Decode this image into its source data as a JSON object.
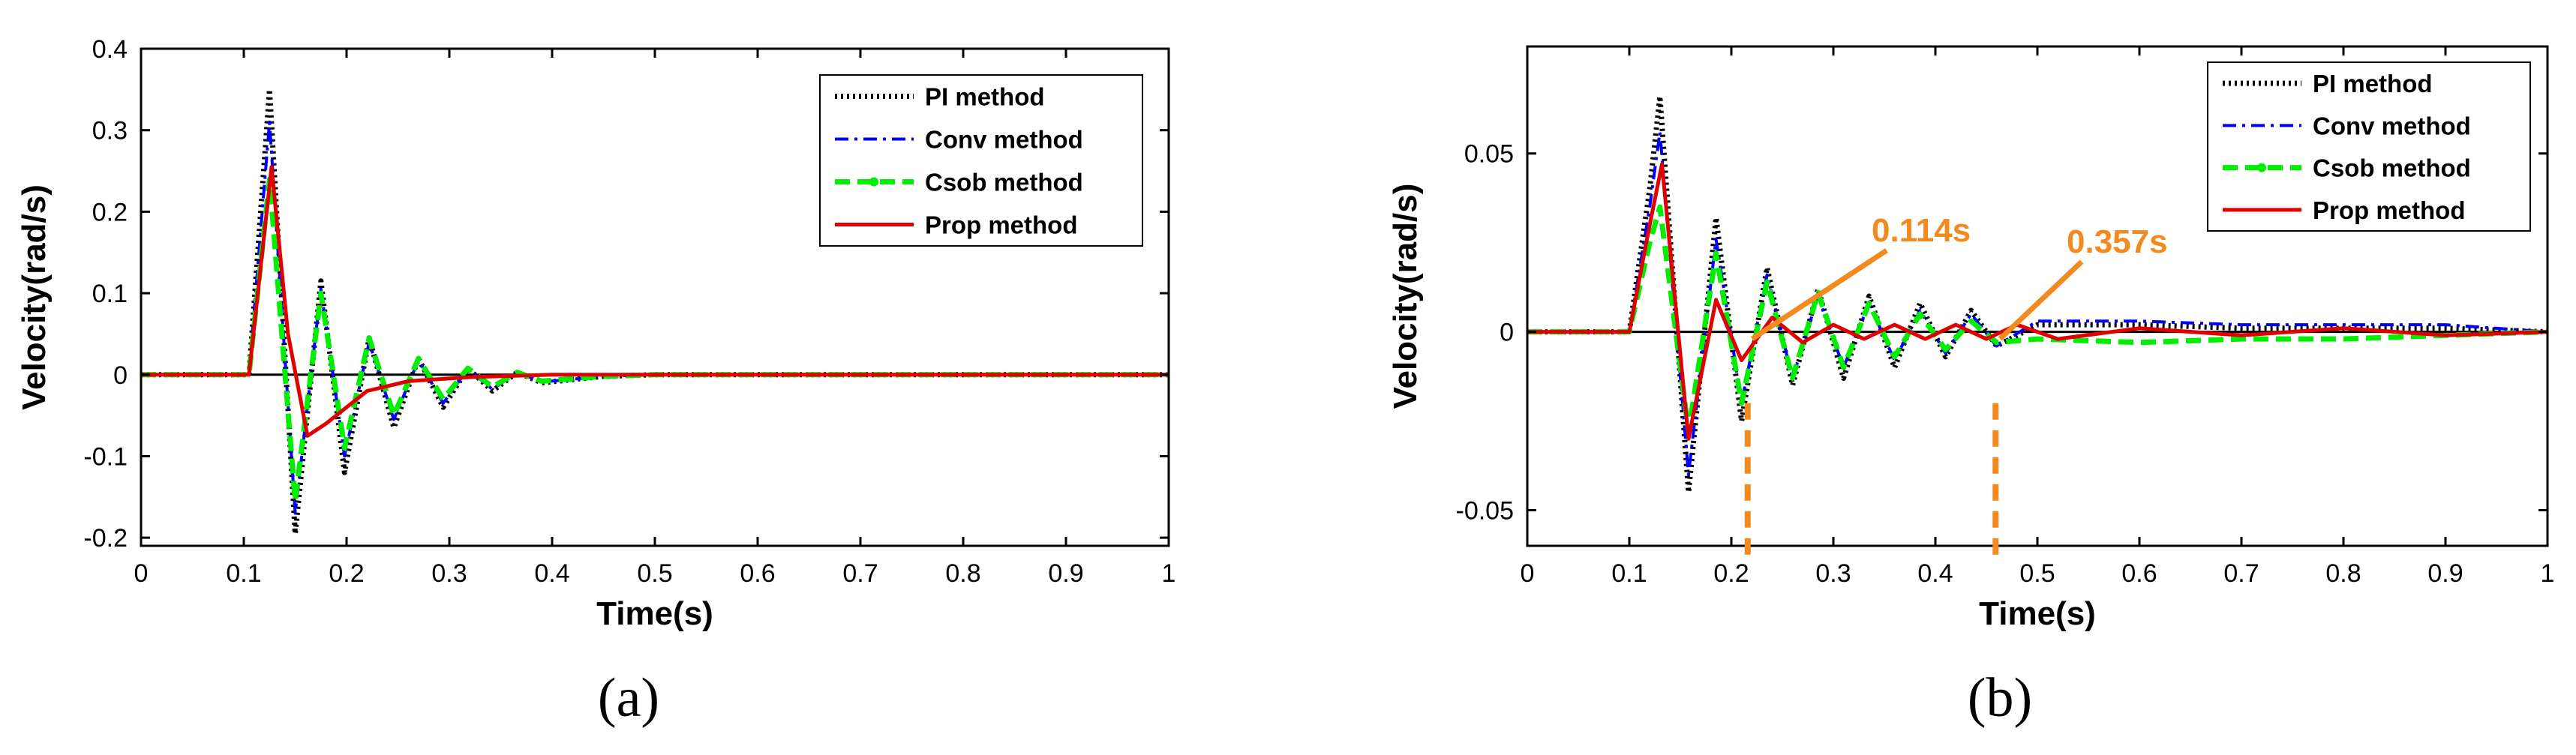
{
  "chart_data": [
    {
      "type": "line",
      "panel_label": "(a)",
      "title": "",
      "xlabel": "Time(s)",
      "ylabel": "Velocity(rad/s)",
      "xlim": [
        0,
        1
      ],
      "ylim": [
        -0.21,
        0.4
      ],
      "xticks": [
        0,
        0.1,
        0.2,
        0.3,
        0.4,
        0.5,
        0.6,
        0.7,
        0.8,
        0.9,
        1
      ],
      "xtick_labels": [
        "0",
        "0.1",
        "0.2",
        "0.3",
        "0.4",
        "0.5",
        "0.6",
        "0.7",
        "0.8",
        "0.9",
        "1"
      ],
      "yticks": [
        -0.2,
        -0.1,
        0,
        0.1,
        0.2,
        0.3,
        0.4
      ],
      "ytick_labels": [
        "-0.2",
        "-0.1",
        "0",
        "0.1",
        "0.2",
        "0.3",
        "0.4"
      ],
      "grid": false,
      "legend_position": "top-right",
      "reference_line": 0,
      "series": [
        {
          "name": "PI method",
          "color": "#000000",
          "style": "dotted",
          "x": [
            0,
            0.105,
            0.125,
            0.15,
            0.175,
            0.198,
            0.222,
            0.246,
            0.27,
            0.294,
            0.318,
            0.342,
            0.366,
            0.39,
            0.45,
            0.5,
            1
          ],
          "y": [
            0,
            0,
            0.35,
            -0.195,
            0.115,
            -0.12,
            0.045,
            -0.065,
            0.02,
            -0.04,
            0.008,
            -0.02,
            0.003,
            -0.01,
            -0.002,
            0,
            0
          ]
        },
        {
          "name": "Conv method",
          "color": "#0000ff",
          "style": "dashdot",
          "x": [
            0,
            0.105,
            0.125,
            0.15,
            0.175,
            0.198,
            0.222,
            0.246,
            0.27,
            0.294,
            0.318,
            0.342,
            0.366,
            0.39,
            0.45,
            0.5,
            1
          ],
          "y": [
            0,
            0,
            0.31,
            -0.17,
            0.105,
            -0.1,
            0.04,
            -0.055,
            0.018,
            -0.035,
            0.007,
            -0.018,
            0.003,
            -0.009,
            -0.002,
            0,
            0
          ]
        },
        {
          "name": "Csob method",
          "color": "#00ee00",
          "style": "dashed-marker",
          "x": [
            0,
            0.105,
            0.125,
            0.15,
            0.175,
            0.198,
            0.222,
            0.246,
            0.27,
            0.294,
            0.318,
            0.342,
            0.366,
            0.39,
            0.45,
            0.5,
            1
          ],
          "y": [
            0,
            0,
            0.24,
            -0.155,
            0.1,
            -0.09,
            0.045,
            -0.05,
            0.02,
            -0.03,
            0.008,
            -0.015,
            0.003,
            -0.008,
            -0.002,
            0,
            0
          ]
        },
        {
          "name": "Prop method",
          "color": "#e00000",
          "style": "solid",
          "x": [
            0,
            0.105,
            0.127,
            0.143,
            0.162,
            0.18,
            0.2,
            0.22,
            0.26,
            0.32,
            0.4,
            0.5,
            1
          ],
          "y": [
            0,
            0,
            0.255,
            0.05,
            -0.075,
            -0.06,
            -0.04,
            -0.02,
            -0.008,
            -0.003,
            0,
            0,
            0
          ]
        }
      ]
    },
    {
      "type": "line",
      "panel_label": "(b)",
      "title": "",
      "xlabel": "Time(s)",
      "ylabel": "Velocity(rad/s)",
      "xlim": [
        0,
        1
      ],
      "ylim": [
        -0.06,
        0.08
      ],
      "xticks": [
        0,
        0.1,
        0.2,
        0.3,
        0.4,
        0.5,
        0.6,
        0.7,
        0.8,
        0.9,
        1
      ],
      "xtick_labels": [
        "0",
        "0.1",
        "0.2",
        "0.3",
        "0.4",
        "0.5",
        "0.6",
        "0.7",
        "0.8",
        "0.9",
        "1"
      ],
      "yticks": [
        -0.05,
        0,
        0.05
      ],
      "ytick_labels": [
        "-0.05",
        "0",
        "0.05"
      ],
      "grid": false,
      "legend_position": "top-right",
      "reference_line": 0,
      "annotations": [
        {
          "text": "0.114s",
          "x": 0.216,
          "color": "#f28a1f"
        },
        {
          "text": "0.357s",
          "x": 0.459,
          "color": "#f28a1f"
        }
      ],
      "series": [
        {
          "name": "PI method",
          "color": "#000000",
          "style": "dotted",
          "x": [
            0,
            0.1,
            0.12,
            0.13,
            0.158,
            0.185,
            0.21,
            0.235,
            0.26,
            0.285,
            0.31,
            0.335,
            0.36,
            0.385,
            0.41,
            0.435,
            0.46,
            0.5,
            0.6,
            0.7,
            0.8,
            0.9,
            1
          ],
          "y": [
            0,
            0,
            0.04,
            0.066,
            -0.045,
            0.032,
            -0.025,
            0.018,
            -0.015,
            0.012,
            -0.013,
            0.01,
            -0.01,
            0.008,
            -0.007,
            0.006,
            -0.004,
            0.002,
            0.002,
            0.001,
            0.001,
            0.001,
            0
          ]
        },
        {
          "name": "Conv method",
          "color": "#0000ff",
          "style": "dashdot",
          "x": [
            0,
            0.1,
            0.12,
            0.13,
            0.158,
            0.185,
            0.21,
            0.235,
            0.26,
            0.285,
            0.31,
            0.335,
            0.36,
            0.385,
            0.41,
            0.435,
            0.46,
            0.5,
            0.6,
            0.7,
            0.8,
            0.9,
            1
          ],
          "y": [
            0,
            0,
            0.035,
            0.056,
            -0.04,
            0.026,
            -0.02,
            0.016,
            -0.013,
            0.01,
            -0.01,
            0.008,
            -0.008,
            0.006,
            -0.006,
            0.005,
            -0.004,
            0.003,
            0.003,
            0.002,
            0.002,
            0.002,
            0
          ]
        },
        {
          "name": "Csob method",
          "color": "#00ee00",
          "style": "dashed-marker",
          "x": [
            0,
            0.1,
            0.12,
            0.13,
            0.158,
            0.185,
            0.21,
            0.235,
            0.26,
            0.285,
            0.31,
            0.335,
            0.36,
            0.385,
            0.41,
            0.435,
            0.46,
            0.5,
            0.6,
            0.7,
            0.8,
            0.9,
            1
          ],
          "y": [
            0,
            0,
            0.025,
            0.035,
            -0.028,
            0.022,
            -0.02,
            0.014,
            -0.013,
            0.011,
            -0.01,
            0.008,
            -0.007,
            0.005,
            -0.005,
            0.003,
            -0.003,
            -0.002,
            -0.003,
            -0.002,
            -0.002,
            -0.001,
            0
          ]
        },
        {
          "name": "Prop method",
          "color": "#e00000",
          "style": "solid",
          "x": [
            0,
            0.1,
            0.12,
            0.132,
            0.158,
            0.185,
            0.21,
            0.24,
            0.27,
            0.3,
            0.33,
            0.36,
            0.39,
            0.42,
            0.45,
            0.48,
            0.52,
            0.6,
            0.7,
            0.8,
            0.9,
            1
          ],
          "y": [
            0,
            0,
            0.03,
            0.047,
            -0.03,
            0.009,
            -0.008,
            0.004,
            -0.003,
            0.002,
            -0.002,
            0.002,
            -0.002,
            0.002,
            -0.002,
            0.002,
            -0.002,
            0.001,
            -0.001,
            0.001,
            -0.001,
            0
          ]
        }
      ]
    }
  ]
}
